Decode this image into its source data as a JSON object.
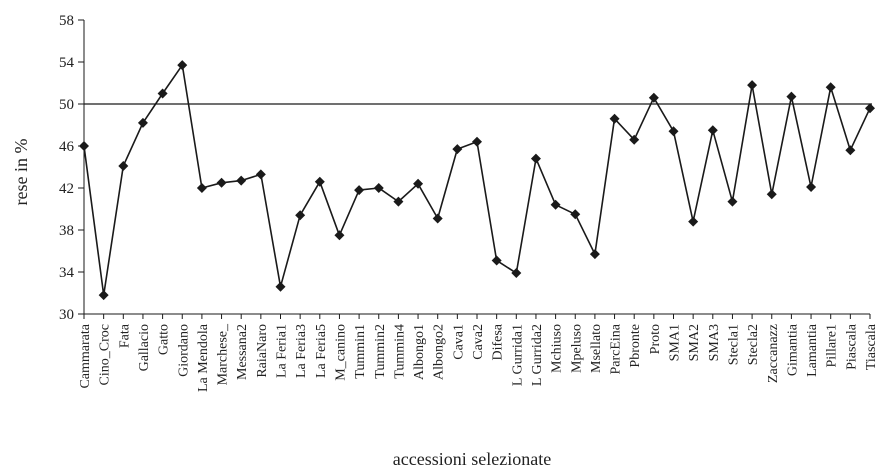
{
  "chart_data": {
    "type": "line",
    "xlabel": "accessioni selezionate",
    "ylabel": "rese in %",
    "ylim": [
      30,
      58
    ],
    "yticks": [
      30,
      34,
      38,
      42,
      46,
      50,
      54,
      58
    ],
    "reference_line": 50,
    "grid": false,
    "legend": "none",
    "marker": "diamond",
    "line_color": "#1a1a1a",
    "categories": [
      "Cammarata",
      "Cino_Croc",
      "Fata",
      "Gallacio",
      "Gatto",
      "Giordano",
      "La Mendola",
      "Marchese_",
      "Messana2",
      "RaiaNaro",
      "La Feria1",
      "La Feria3",
      "La Feria5",
      "M_canino",
      "Tummin1",
      "Tummin2",
      "Tummin4",
      "Albongo1",
      "Albongo2",
      "Cava1",
      "Cava2",
      "Difesa",
      "L Gurrida1",
      "L Gurrida2",
      "Mchiuso",
      "Mpeluso",
      "Msellato",
      "ParcEina",
      "Pbronte",
      "Proto",
      "SMA1",
      "SMA2",
      "SMA3",
      "Stecla1",
      "Stecla2",
      "Zaccanazz",
      "Gimantia",
      "Lamantia",
      "Pillare1",
      "Piascala",
      "Tiascala"
    ],
    "values": [
      46.0,
      31.8,
      44.1,
      48.2,
      51.0,
      53.7,
      42.0,
      42.5,
      42.7,
      43.3,
      32.6,
      39.4,
      42.6,
      37.5,
      41.8,
      42.0,
      40.7,
      42.4,
      39.1,
      45.7,
      46.4,
      35.1,
      33.9,
      44.8,
      40.4,
      39.5,
      35.7,
      48.6,
      46.6,
      50.6,
      47.4,
      38.8,
      47.5,
      40.7,
      51.8,
      41.4,
      50.7,
      42.1,
      51.6,
      45.6,
      49.6
    ]
  }
}
